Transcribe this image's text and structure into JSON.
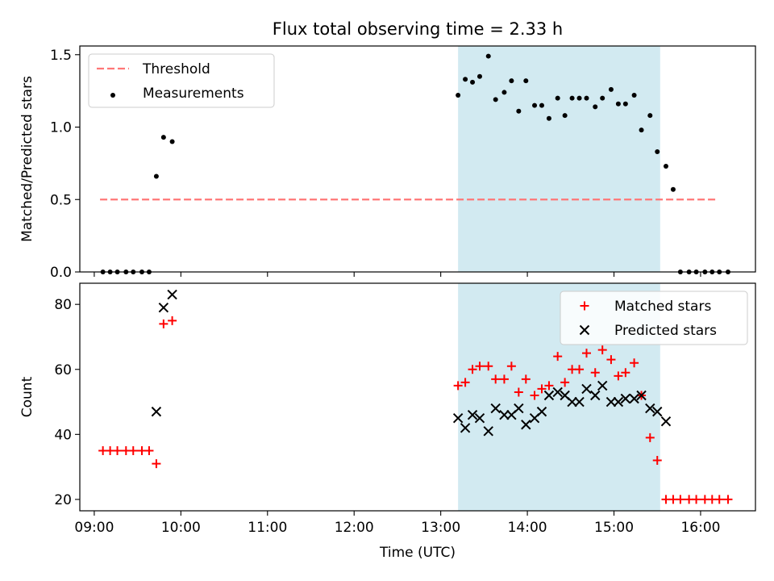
{
  "figure": {
    "title": "Flux total observing time = 2.33 h",
    "xlabel": "Time (UTC)"
  },
  "chart_data": [
    {
      "type": "scatter",
      "title": "Flux total observing time = 2.33 h",
      "xlabel": "",
      "ylabel": "Matched/Predicted stars",
      "xlim": [
        "08:50",
        "16:38"
      ],
      "ylim": [
        0,
        1.56
      ],
      "yticks": [
        0.0,
        0.5,
        1.0,
        1.5
      ],
      "ytick_labels": [
        "0.0",
        "0.5",
        "1.0",
        "1.5"
      ],
      "xticks": [
        "09:00",
        "10:00",
        "11:00",
        "12:00",
        "13:00",
        "14:00",
        "15:00",
        "16:00"
      ],
      "shaded_span": {
        "x_start": "13:12",
        "x_end": "15:32",
        "color": "#add8e6"
      },
      "legend_position": "upper left",
      "grid": false,
      "threshold": {
        "name": "Threshold",
        "x_start": "09:04",
        "x_end": "16:12",
        "y": 0.5,
        "color": "#ff7777",
        "style": "dashed"
      },
      "series": [
        {
          "name": "Measurements",
          "marker": "dot",
          "color": "#000000",
          "x": [
            "09:06",
            "09:11",
            "09:16",
            "09:22",
            "09:27",
            "09:33",
            "09:38",
            "09:43",
            "09:48",
            "09:54",
            "09:59",
            "13:12",
            "13:17",
            "13:22",
            "13:27",
            "13:33",
            "13:38",
            "13:44",
            "13:49",
            "13:54",
            "13:59",
            "14:05",
            "14:10",
            "14:15",
            "14:21",
            "14:26",
            "14:31",
            "14:36",
            "14:41",
            "14:47",
            "14:52",
            "14:58",
            "15:03",
            "15:08",
            "15:14",
            "15:19",
            "15:25",
            "15:30",
            "15:36",
            "15:41",
            "15:46",
            "15:52",
            "15:57",
            "16:03",
            "16:08",
            "16:13",
            "16:19"
          ],
          "y": [
            0,
            0,
            0,
            0,
            0,
            0,
            0,
            0.66,
            0.93,
            0.9,
            null,
            1.22,
            1.33,
            1.31,
            1.35,
            1.49,
            1.19,
            1.24,
            1.32,
            1.11,
            1.32,
            1.15,
            1.15,
            1.06,
            1.2,
            1.08,
            1.2,
            1.2,
            1.2,
            1.14,
            1.2,
            1.26,
            1.16,
            1.16,
            1.22,
            0.98,
            1.08,
            0.83,
            0.73,
            0.57,
            0,
            0,
            0,
            0,
            0,
            0,
            0
          ]
        }
      ]
    },
    {
      "type": "scatter",
      "xlabel": "Time (UTC)",
      "ylabel": "Count",
      "xlim": [
        "08:50",
        "16:38"
      ],
      "ylim": [
        16.5,
        86.5
      ],
      "yticks": [
        20,
        40,
        60,
        80
      ],
      "ytick_labels": [
        "20",
        "40",
        "60",
        "80"
      ],
      "xticks": [
        "09:00",
        "10:00",
        "11:00",
        "12:00",
        "13:00",
        "14:00",
        "15:00",
        "16:00"
      ],
      "xtick_labels": [
        "09:00",
        "10:00",
        "11:00",
        "12:00",
        "13:00",
        "14:00",
        "15:00",
        "16:00"
      ],
      "shaded_span": {
        "x_start": "13:12",
        "x_end": "15:32",
        "color": "#add8e6"
      },
      "legend_position": "upper right",
      "grid": false,
      "series": [
        {
          "name": "Matched stars",
          "marker": "plus",
          "color": "#ff0000",
          "x": [
            "09:06",
            "09:11",
            "09:16",
            "09:22",
            "09:27",
            "09:33",
            "09:38",
            "09:43",
            "09:48",
            "09:54",
            "09:59",
            "13:12",
            "13:17",
            "13:22",
            "13:27",
            "13:33",
            "13:38",
            "13:44",
            "13:49",
            "13:54",
            "13:59",
            "14:05",
            "14:10",
            "14:15",
            "14:21",
            "14:26",
            "14:31",
            "14:36",
            "14:41",
            "14:47",
            "14:52",
            "14:58",
            "15:03",
            "15:08",
            "15:14",
            "15:19",
            "15:25",
            "15:30",
            "15:36",
            "15:41",
            "15:46",
            "15:52",
            "15:57",
            "16:03",
            "16:08",
            "16:13",
            "16:19"
          ],
          "y": [
            35,
            35,
            35,
            35,
            35,
            35,
            35,
            31,
            74,
            75,
            null,
            55,
            56,
            60,
            61,
            61,
            57,
            57,
            61,
            53,
            57,
            52,
            54,
            55,
            64,
            56,
            60,
            60,
            65,
            59,
            66,
            63,
            58,
            59,
            62,
            52,
            39,
            32,
            20,
            20,
            20,
            20,
            20,
            20,
            20,
            20,
            20
          ]
        },
        {
          "name": "Predicted stars",
          "marker": "x",
          "color": "#000000",
          "x": [
            "09:43",
            "09:48",
            "09:54",
            "13:12",
            "13:17",
            "13:22",
            "13:27",
            "13:33",
            "13:38",
            "13:44",
            "13:49",
            "13:54",
            "13:59",
            "14:05",
            "14:10",
            "14:15",
            "14:21",
            "14:26",
            "14:31",
            "14:36",
            "14:41",
            "14:47",
            "14:52",
            "14:58",
            "15:03",
            "15:08",
            "15:14",
            "15:19",
            "15:25",
            "15:30",
            "15:36"
          ],
          "y": [
            47,
            79,
            83,
            45,
            42,
            46,
            45,
            41,
            48,
            46,
            46,
            48,
            43,
            45,
            47,
            52,
            53,
            52,
            50,
            50,
            54,
            52,
            55,
            50,
            50,
            51,
            51,
            52,
            48,
            47,
            44
          ]
        }
      ]
    }
  ]
}
